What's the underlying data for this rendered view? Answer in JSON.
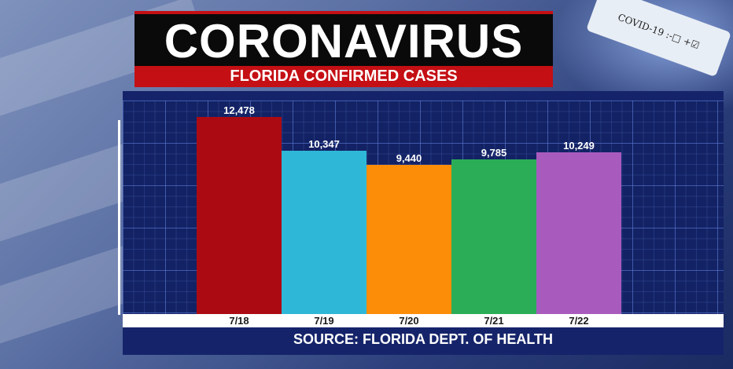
{
  "header": {
    "title": "CORONAVIRUS",
    "subtitle": "FLORIDA CONFIRMED CASES"
  },
  "test_tube": {
    "text": "COVID-19 :-□ +☑"
  },
  "source": "SOURCE: FLORIDA DEPT. OF HEALTH",
  "colors": {
    "title_bg": "#0a0a0a",
    "accent_red": "#c40f14",
    "panel_bg": "#15246a"
  },
  "chart_data": {
    "type": "bar",
    "title": "FLORIDA CONFIRMED CASES",
    "xlabel": "",
    "ylabel": "",
    "categories": [
      "7/18",
      "7/19",
      "7/20",
      "7/21",
      "7/22"
    ],
    "values": [
      12478,
      10347,
      9440,
      9785,
      10249
    ],
    "value_labels": [
      "12,478",
      "10,347",
      "9,440",
      "9,785",
      "10,249"
    ],
    "bar_colors": [
      "#ac0a12",
      "#2fb7d8",
      "#fb8d09",
      "#2bad57",
      "#a95bbd"
    ],
    "ylim": [
      0,
      13500
    ],
    "grid": true,
    "legend": "none"
  }
}
